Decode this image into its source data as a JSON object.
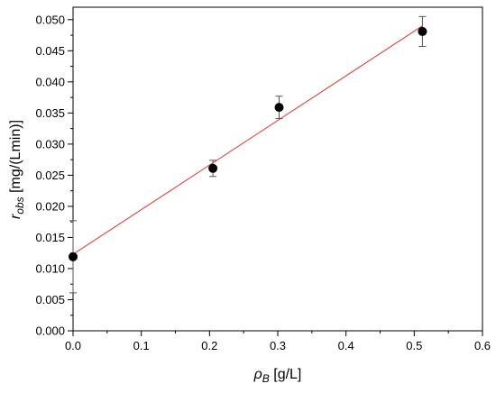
{
  "chart_data": {
    "type": "scatter",
    "xlabel": {
      "base": "ρ",
      "sub": "B",
      "rest": " [g/L]"
    },
    "ylabel": {
      "base": "r",
      "sub": "obs",
      "rest": " [mg/(Lmin)]"
    },
    "xlim": [
      0.0,
      0.6
    ],
    "ylim": [
      0.0,
      0.052
    ],
    "xticks": [
      "0.0",
      "0.1",
      "0.2",
      "0.3",
      "0.4",
      "0.5",
      "0.6"
    ],
    "yticks": [
      "0.000",
      "0.005",
      "0.010",
      "0.015",
      "0.020",
      "0.025",
      "0.030",
      "0.035",
      "0.040",
      "0.045",
      "0.050"
    ],
    "points": [
      {
        "x": 0.0,
        "y": 0.0119,
        "err": 0.0058
      },
      {
        "x": 0.205,
        "y": 0.0261,
        "err": 0.0013
      },
      {
        "x": 0.302,
        "y": 0.0359,
        "err": 0.0018
      },
      {
        "x": 0.512,
        "y": 0.0481,
        "err": 0.0024
      }
    ],
    "fit_line": {
      "x": [
        0.0,
        0.512
      ],
      "y": [
        0.0123,
        0.049
      ],
      "color": "#e8322c"
    },
    "marker_color": "#000000",
    "grid": false,
    "legend": false
  }
}
